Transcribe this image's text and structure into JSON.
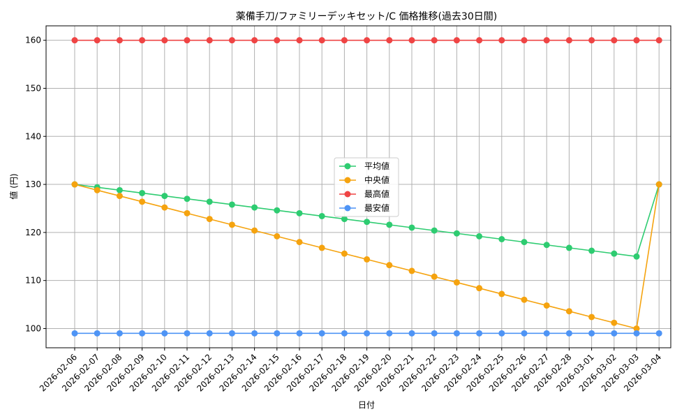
{
  "chart_data": {
    "type": "line",
    "title": "薬備手刀/ファミリーデッキセット/C 価格推移(過去30日間)",
    "xlabel": "日付",
    "ylabel": "値 (円)",
    "ylim": [
      96,
      163
    ],
    "yticks": [
      100,
      110,
      120,
      130,
      140,
      150,
      160
    ],
    "grid": true,
    "legend_position": "center",
    "categories": [
      "2026-02-06",
      "2026-02-07",
      "2026-02-08",
      "2026-02-09",
      "2026-02-10",
      "2026-02-11",
      "2026-02-12",
      "2026-02-13",
      "2026-02-14",
      "2026-02-15",
      "2026-02-16",
      "2026-02-17",
      "2026-02-18",
      "2026-02-19",
      "2026-02-20",
      "2026-02-21",
      "2026-02-22",
      "2026-02-23",
      "2026-02-24",
      "2026-02-25",
      "2026-02-26",
      "2026-02-27",
      "2026-02-28",
      "2026-03-01",
      "2026-03-02",
      "2026-03-03",
      "2026-03-04"
    ],
    "series": [
      {
        "name": "平均値",
        "color": "#2ecc71",
        "values": [
          130,
          129.4,
          128.8,
          128.2,
          127.6,
          127.0,
          126.4,
          125.8,
          125.2,
          124.6,
          124.0,
          123.4,
          122.8,
          122.2,
          121.6,
          121.0,
          120.4,
          119.8,
          119.2,
          118.6,
          118.0,
          117.4,
          116.8,
          116.2,
          115.6,
          115.0,
          130
        ]
      },
      {
        "name": "中央値",
        "color": "#f5a30f",
        "values": [
          130,
          128.8,
          127.6,
          126.4,
          125.2,
          124.0,
          122.8,
          121.6,
          120.4,
          119.2,
          118.0,
          116.8,
          115.6,
          114.4,
          113.2,
          112.0,
          110.8,
          109.6,
          108.4,
          107.2,
          106.0,
          104.8,
          103.6,
          102.4,
          101.2,
          100.0,
          130
        ]
      },
      {
        "name": "最高値",
        "color": "#ef4444",
        "values": [
          160,
          160,
          160,
          160,
          160,
          160,
          160,
          160,
          160,
          160,
          160,
          160,
          160,
          160,
          160,
          160,
          160,
          160,
          160,
          160,
          160,
          160,
          160,
          160,
          160,
          160,
          160
        ]
      },
      {
        "name": "最安値",
        "color": "#4e94f5",
        "values": [
          99,
          99,
          99,
          99,
          99,
          99,
          99,
          99,
          99,
          99,
          99,
          99,
          99,
          99,
          99,
          99,
          99,
          99,
          99,
          99,
          99,
          99,
          99,
          99,
          99,
          99,
          99
        ]
      }
    ]
  }
}
